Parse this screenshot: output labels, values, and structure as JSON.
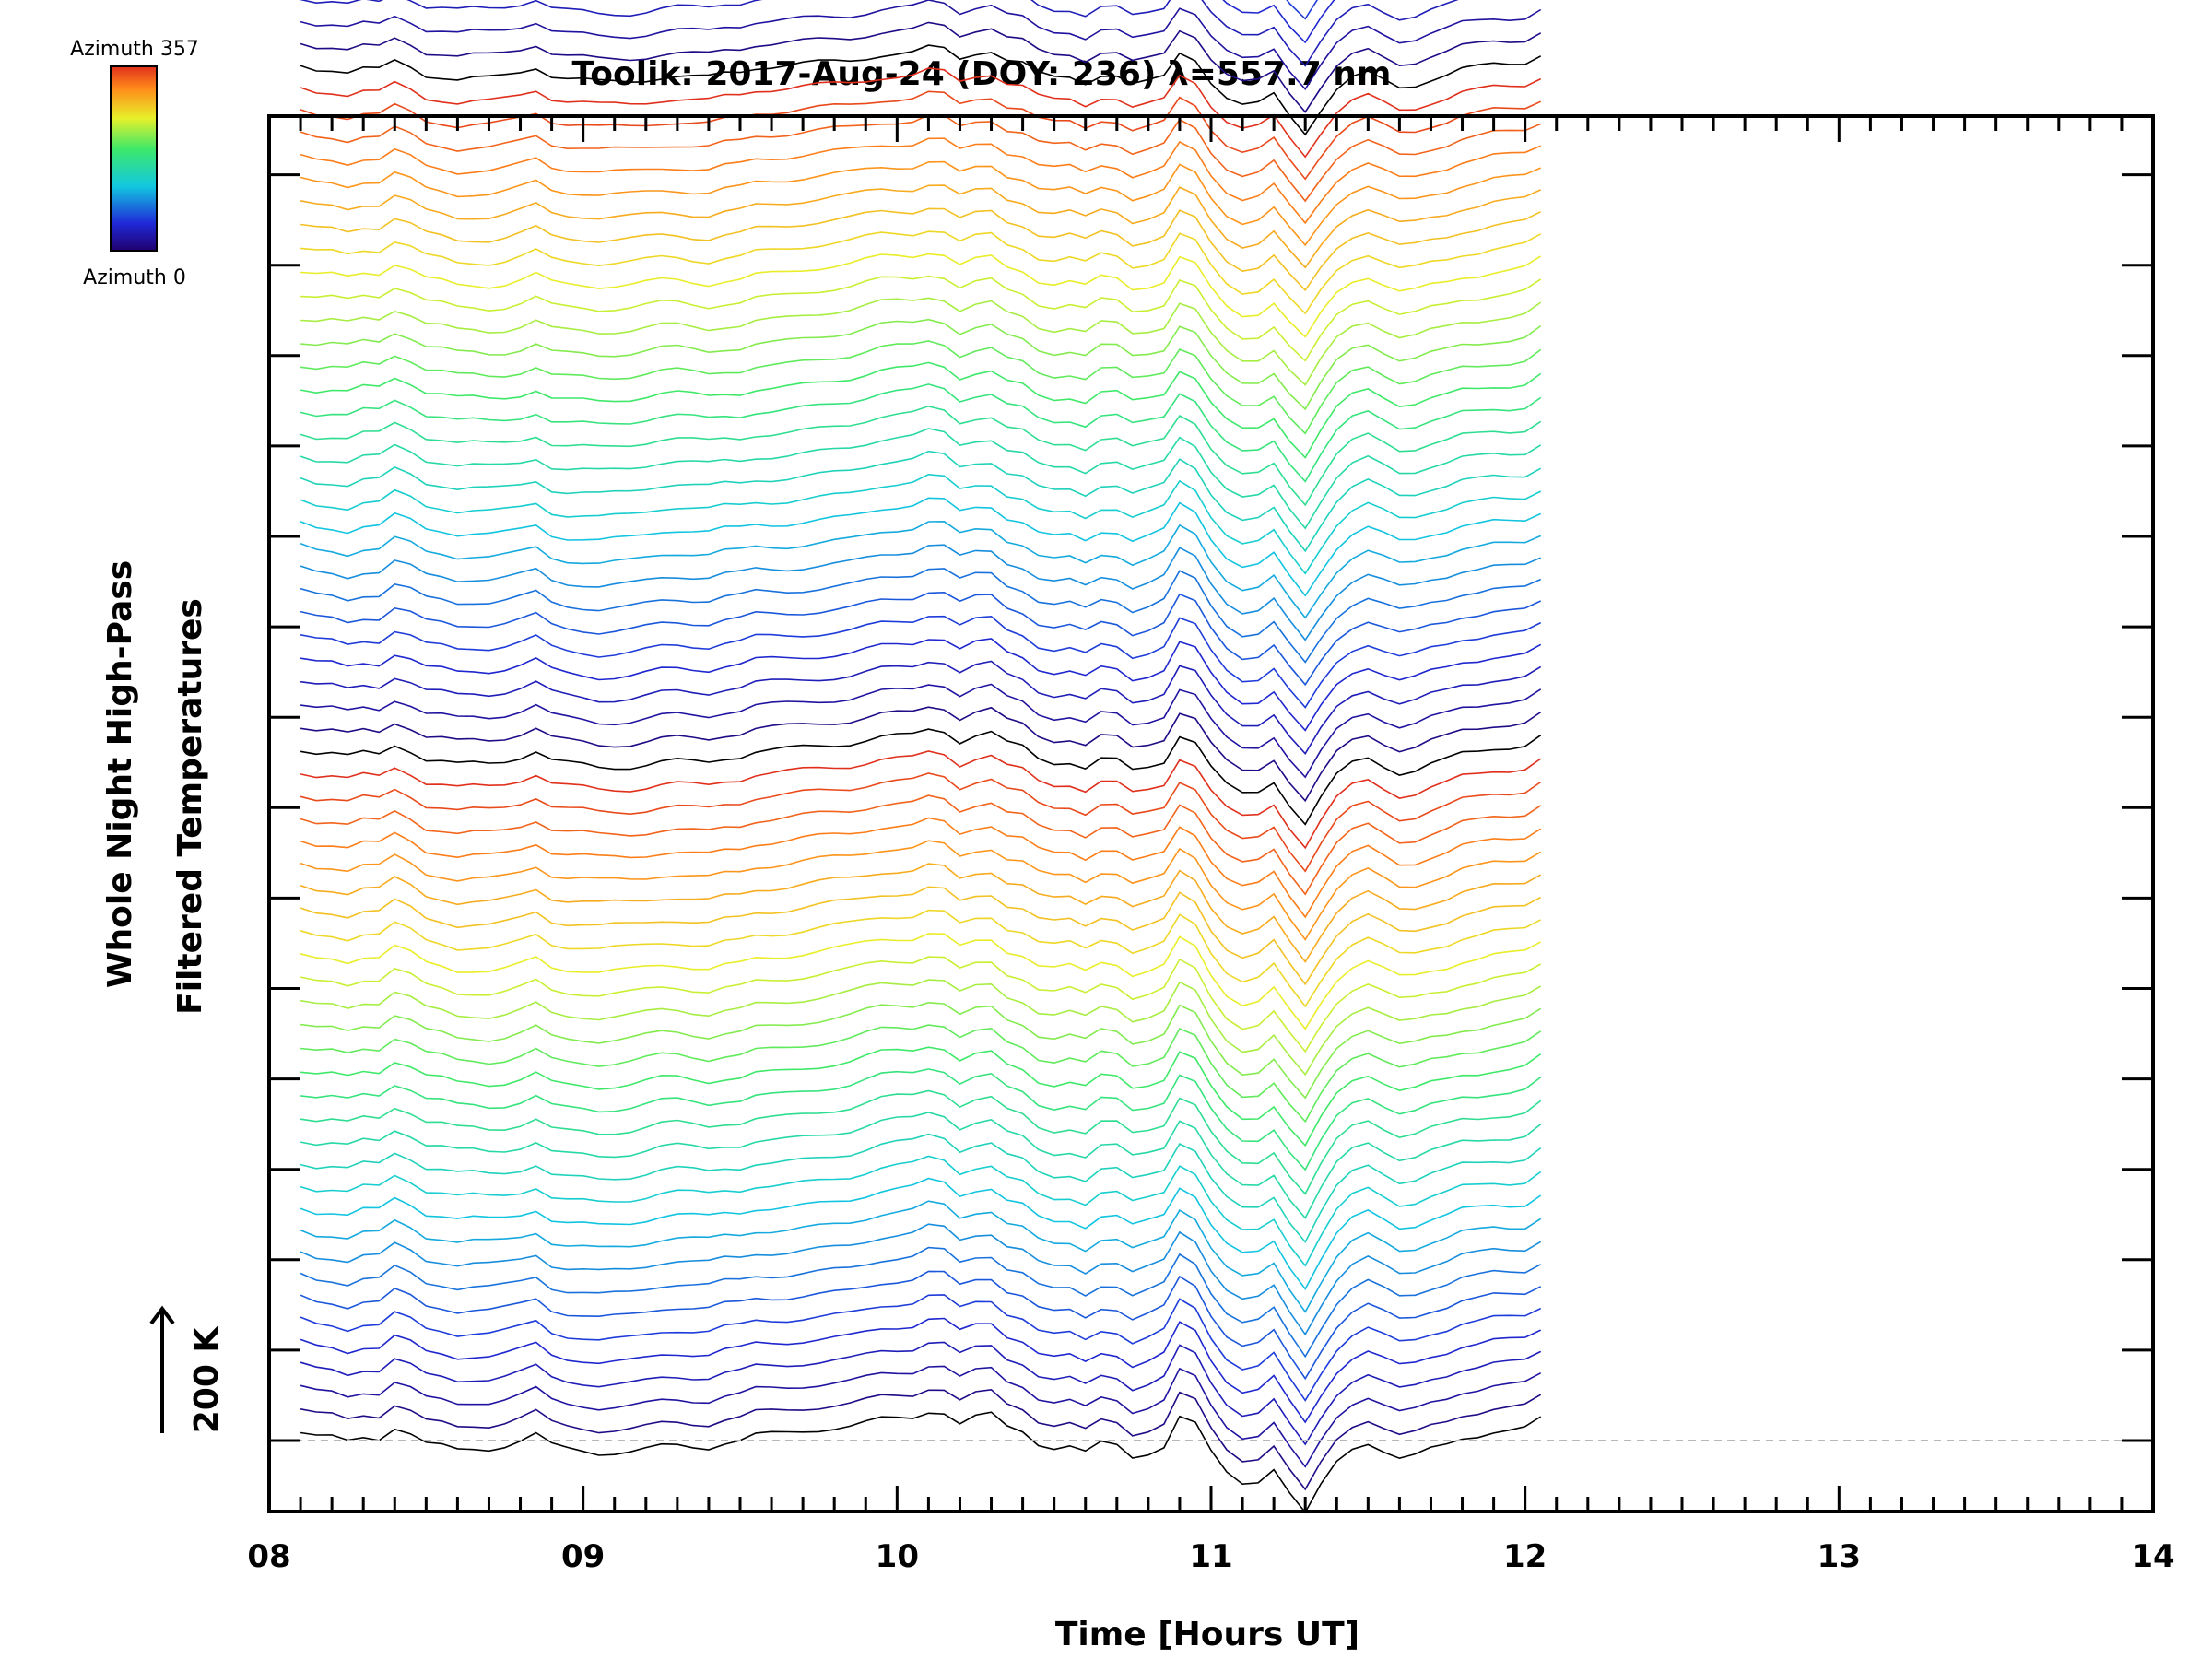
{
  "chart_data": {
    "type": "line",
    "title": "Toolik: 2017-Aug-24 (DOY: 236) λ=557.7 nm",
    "xlabel": "Time [Hours UT]",
    "ylabel_line1": "Whole Night High-Pass",
    "ylabel_line2": "Filtered Temperatures",
    "xlim": [
      8,
      14
    ],
    "x_ticks": [
      "08",
      "09",
      "10",
      "11",
      "12",
      "13",
      "14"
    ],
    "scale_bar_label": "200 K",
    "scale_bar_kelvin": 200,
    "colorbar": {
      "top_label": "Azimuth 357",
      "bottom_label": "Azimuth 0",
      "min": 0,
      "max": 357
    },
    "n_series": 115,
    "series_offset_kelvin": 55,
    "x": [
      8.1,
      8.15,
      8.2,
      8.25,
      8.3,
      8.35,
      8.4,
      8.45,
      8.5,
      8.55,
      8.6,
      8.65,
      8.7,
      8.75,
      8.8,
      8.85,
      8.9,
      8.95,
      9.0,
      9.05,
      9.1,
      9.15,
      9.2,
      9.25,
      9.3,
      9.35,
      9.4,
      9.45,
      9.5,
      9.55,
      9.6,
      9.65,
      9.7,
      9.75,
      9.8,
      9.85,
      9.9,
      9.95,
      10.0,
      10.05,
      10.1,
      10.15,
      10.2,
      10.25,
      10.3,
      10.35,
      10.4,
      10.45,
      10.5,
      10.55,
      10.6,
      10.65,
      10.7,
      10.75,
      10.8,
      10.85,
      10.9,
      10.95,
      11.0,
      11.05,
      11.1,
      11.15,
      11.2,
      11.25,
      11.3,
      11.35,
      11.4,
      11.45,
      11.5,
      11.55,
      11.6,
      11.65,
      11.7,
      11.75,
      11.8,
      11.85,
      11.9,
      11.95,
      12.0,
      12.05
    ],
    "base_profile_kelvin": [
      15,
      5,
      5,
      -3,
      10,
      8,
      35,
      20,
      -5,
      -10,
      -20,
      -18,
      -20,
      -15,
      -5,
      10,
      -15,
      -22,
      -25,
      -30,
      -28,
      -25,
      -18,
      -10,
      -8,
      -12,
      -15,
      -5,
      -2,
      10,
      12,
      15,
      20,
      25,
      30,
      35,
      45,
      55,
      58,
      60,
      75,
      70,
      40,
      55,
      60,
      30,
      20,
      -10,
      -20,
      -15,
      -30,
      -5,
      -8,
      -35,
      -25,
      -10,
      60,
      40,
      -30,
      -80,
      -105,
      -100,
      -70,
      -130,
      -180,
      -110,
      -50,
      -15,
      0,
      -20,
      -40,
      -35,
      -20,
      -10,
      5,
      10,
      18,
      20,
      25,
      50
    ]
  }
}
